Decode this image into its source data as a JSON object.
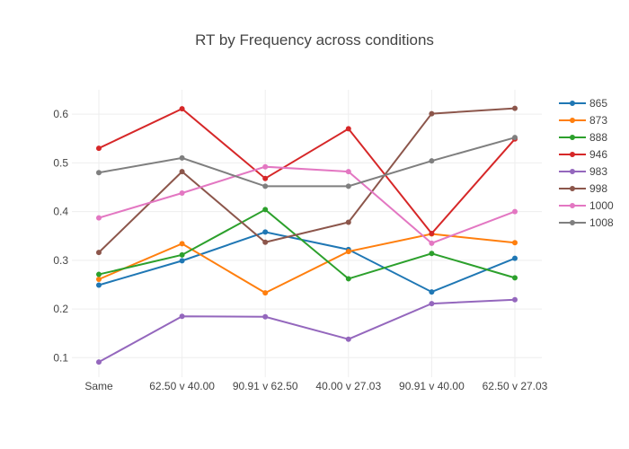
{
  "chart_data": {
    "type": "line",
    "title": "RT by Frequency across conditions",
    "xlabel": "",
    "ylabel": "",
    "categories": [
      "Same",
      "62.50 v 40.00",
      "90.91 v 62.50",
      "40.00 v 27.03",
      "90.91 v 40.00",
      "62.50 v 27.03"
    ],
    "ylim": [
      0.06,
      0.65
    ],
    "yticks": [
      "0.1",
      "0.2",
      "0.3",
      "0.4",
      "0.5",
      "0.6"
    ],
    "grid": true,
    "legend_position": "right",
    "series": [
      {
        "name": "865",
        "color": "#1f77b4",
        "values": [
          0.249,
          0.299,
          0.358,
          0.322,
          0.235,
          0.304
        ]
      },
      {
        "name": "873",
        "color": "#ff7f0e",
        "values": [
          0.261,
          0.334,
          0.233,
          0.318,
          0.354,
          0.336
        ]
      },
      {
        "name": "888",
        "color": "#2ca02c",
        "values": [
          0.271,
          0.311,
          0.404,
          0.262,
          0.314,
          0.264
        ]
      },
      {
        "name": "946",
        "color": "#d62728",
        "values": [
          0.53,
          0.611,
          0.468,
          0.57,
          0.355,
          0.549
        ]
      },
      {
        "name": "983",
        "color": "#9467bd",
        "values": [
          0.091,
          0.185,
          0.184,
          0.138,
          0.211,
          0.219
        ]
      },
      {
        "name": "998",
        "color": "#8c564b",
        "values": [
          0.316,
          0.482,
          0.337,
          0.378,
          0.601,
          0.612
        ]
      },
      {
        "name": "1000",
        "color": "#e377c2",
        "values": [
          0.387,
          0.438,
          0.492,
          0.482,
          0.335,
          0.4
        ]
      },
      {
        "name": "1008",
        "color": "#7f7f7f",
        "values": [
          0.48,
          0.51,
          0.452,
          0.452,
          0.504,
          0.552
        ]
      }
    ]
  }
}
